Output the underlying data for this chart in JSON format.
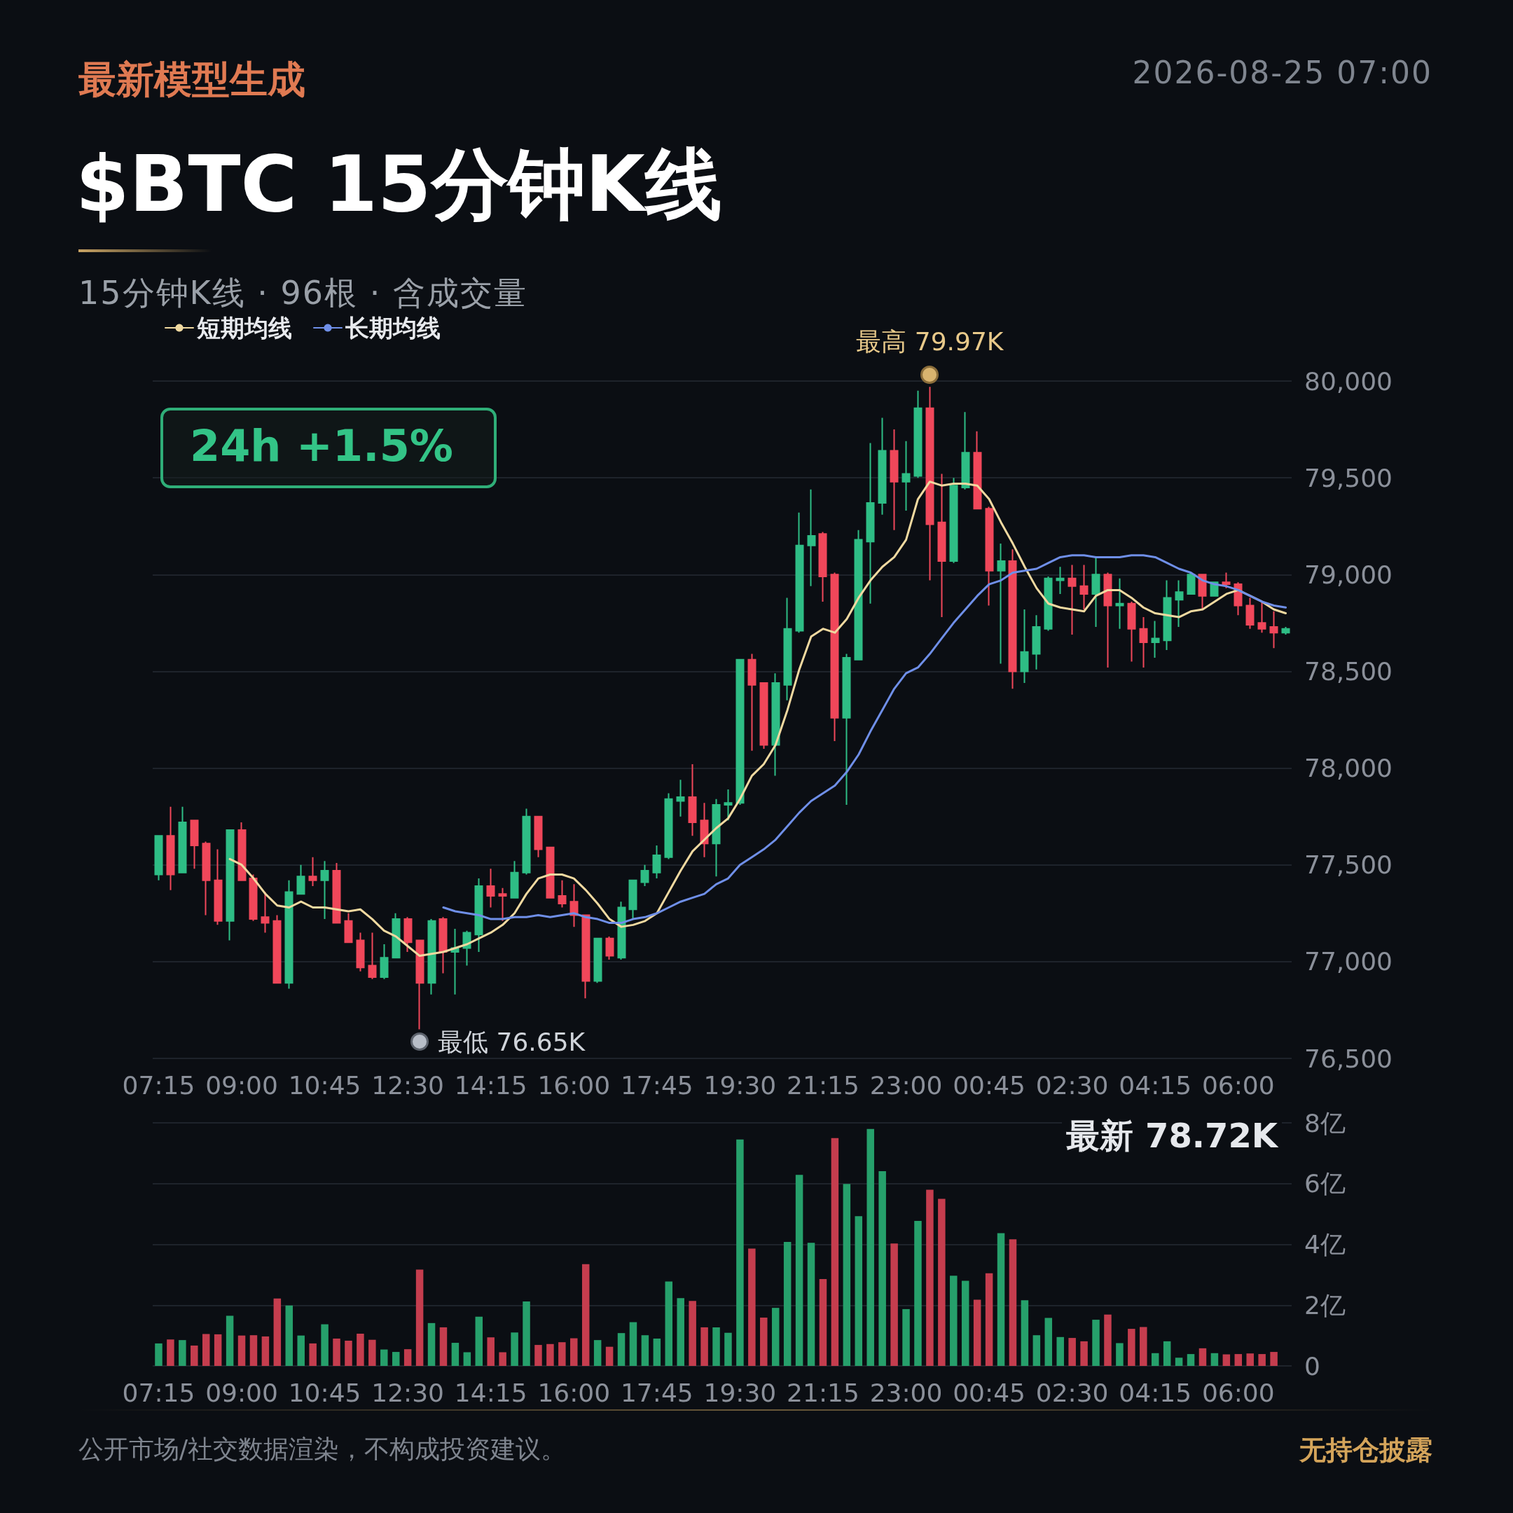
{
  "chart_data": [
    {
      "type": "candlestick",
      "title": "$BTC 15分钟K线",
      "subtitle": "15分钟K线 · 96根 · 含成交量",
      "annotations": [
        "最新模型生成",
        "2026-08-25 07:00",
        "24h +1.5%",
        "公开市场/社交数据渲染，不构成投资建议。",
        "无持仓披露",
        "最高 79.97K",
        "最低 76.65K",
        "最新 78.72K"
      ],
      "categories": [
        "07:15",
        null,
        null,
        null,
        null,
        null,
        null,
        "09:00",
        null,
        null,
        null,
        null,
        null,
        null,
        "10:45",
        null,
        null,
        null,
        null,
        null,
        null,
        "12:30",
        null,
        null,
        null,
        null,
        null,
        null,
        "14:15",
        null,
        null,
        null,
        null,
        null,
        null,
        "16:00",
        null,
        null,
        null,
        null,
        null,
        null,
        "17:45",
        null,
        null,
        null,
        null,
        null,
        null,
        "19:30",
        null,
        null,
        null,
        null,
        null,
        null,
        "21:15",
        null,
        null,
        null,
        null,
        null,
        null,
        "23:00",
        null,
        null,
        null,
        null,
        null,
        null,
        "00:45",
        null,
        null,
        null,
        null,
        null,
        null,
        "02:30",
        null,
        null,
        null,
        null,
        null,
        null,
        "04:15",
        null,
        null,
        null,
        null,
        null,
        null,
        "06:00",
        null,
        null,
        null,
        null
      ],
      "ohlc": [
        [
          77450,
          77650,
          77420,
          77650
        ],
        [
          77650,
          77800,
          77370,
          77450
        ],
        [
          77460,
          77800,
          77460,
          77720
        ],
        [
          77730,
          77730,
          77480,
          77600
        ],
        [
          77610,
          77620,
          77240,
          77420
        ],
        [
          77420,
          77580,
          77190,
          77210
        ],
        [
          77210,
          77680,
          77110,
          77680
        ],
        [
          77680,
          77720,
          77420,
          77420
        ],
        [
          77430,
          77450,
          77210,
          77220
        ],
        [
          77230,
          77360,
          77150,
          77200
        ],
        [
          77210,
          77240,
          76890,
          76890
        ],
        [
          76890,
          77420,
          76860,
          77360
        ],
        [
          77350,
          77500,
          77350,
          77440
        ],
        [
          77440,
          77540,
          77390,
          77420
        ],
        [
          77420,
          77520,
          77220,
          77470
        ],
        [
          77470,
          77510,
          77200,
          77200
        ],
        [
          77210,
          77250,
          77100,
          77100
        ],
        [
          77110,
          77150,
          76950,
          76970
        ],
        [
          76980,
          77150,
          76910,
          76920
        ],
        [
          76920,
          77090,
          76910,
          77020
        ],
        [
          77020,
          77250,
          77020,
          77220
        ],
        [
          77220,
          77230,
          77050,
          77100
        ],
        [
          77110,
          77110,
          76650,
          76890
        ],
        [
          76890,
          77220,
          76830,
          77210
        ],
        [
          77220,
          77230,
          76940,
          77050
        ],
        [
          77050,
          77170,
          76830,
          77070
        ],
        [
          77070,
          77160,
          76980,
          77150
        ],
        [
          77140,
          77430,
          77050,
          77390
        ],
        [
          77390,
          77480,
          77280,
          77340
        ],
        [
          77350,
          77380,
          77210,
          77340
        ],
        [
          77330,
          77520,
          77330,
          77460
        ],
        [
          77460,
          77790,
          77450,
          77750
        ],
        [
          77750,
          77750,
          77540,
          77580
        ],
        [
          77590,
          77590,
          77330,
          77330
        ],
        [
          77340,
          77420,
          77280,
          77300
        ],
        [
          77310,
          77400,
          77180,
          77240
        ],
        [
          77240,
          77240,
          76810,
          76900
        ],
        [
          76900,
          77120,
          76890,
          77120
        ],
        [
          77120,
          77130,
          77010,
          77030
        ],
        [
          77020,
          77310,
          77010,
          77280
        ],
        [
          77270,
          77420,
          77220,
          77420
        ],
        [
          77410,
          77500,
          77390,
          77470
        ],
        [
          77460,
          77600,
          77430,
          77550
        ],
        [
          77540,
          77870,
          77530,
          77840
        ],
        [
          77830,
          77940,
          77750,
          77850
        ],
        [
          77850,
          78020,
          77650,
          77720
        ],
        [
          77730,
          77820,
          77540,
          77610
        ],
        [
          77610,
          77840,
          77440,
          77810
        ],
        [
          77810,
          77890,
          77730,
          77820
        ],
        [
          77820,
          78560,
          77810,
          78560
        ],
        [
          78560,
          78590,
          78090,
          78430
        ],
        [
          78440,
          78440,
          78100,
          78120
        ],
        [
          78120,
          78490,
          77960,
          78440
        ],
        [
          78430,
          78880,
          78350,
          78720
        ],
        [
          78710,
          79320,
          78700,
          79150
        ],
        [
          79150,
          79440,
          78940,
          79200
        ],
        [
          79210,
          79220,
          78860,
          78990
        ],
        [
          79000,
          79010,
          78140,
          78260
        ],
        [
          78260,
          78590,
          77810,
          78570
        ],
        [
          78560,
          79230,
          78560,
          79180
        ],
        [
          79170,
          79680,
          78850,
          79370
        ],
        [
          79370,
          79810,
          79310,
          79640
        ],
        [
          79640,
          79750,
          79230,
          79480
        ],
        [
          79480,
          79690,
          79330,
          79520
        ],
        [
          79510,
          79950,
          79500,
          79860
        ],
        [
          79860,
          79970,
          78970,
          79260
        ],
        [
          79270,
          79520,
          78780,
          79070
        ],
        [
          79070,
          79500,
          79060,
          79460
        ],
        [
          79450,
          79840,
          79440,
          79630
        ],
        [
          79630,
          79740,
          79340,
          79340
        ],
        [
          79340,
          79350,
          78840,
          79020
        ],
        [
          79020,
          79160,
          78540,
          79070
        ],
        [
          79070,
          79130,
          78410,
          78500
        ],
        [
          78500,
          78820,
          78440,
          78600
        ],
        [
          78590,
          78790,
          78510,
          78730
        ],
        [
          78720,
          78990,
          78710,
          78980
        ],
        [
          78970,
          79040,
          78900,
          78980
        ],
        [
          78980,
          79050,
          78690,
          78940
        ],
        [
          78940,
          79050,
          78820,
          78900
        ],
        [
          78900,
          79090,
          78730,
          79000
        ],
        [
          79000,
          79010,
          78520,
          78840
        ],
        [
          78840,
          78980,
          78720,
          78850
        ],
        [
          78850,
          78860,
          78550,
          78720
        ],
        [
          78720,
          78780,
          78520,
          78650
        ],
        [
          78650,
          78760,
          78570,
          78670
        ],
        [
          78660,
          78970,
          78610,
          78880
        ],
        [
          78870,
          78970,
          78730,
          78910
        ],
        [
          78900,
          79010,
          78900,
          79000
        ],
        [
          79000,
          79000,
          78820,
          78890
        ],
        [
          78890,
          78960,
          78890,
          78960
        ],
        [
          78960,
          79010,
          78930,
          78950
        ],
        [
          78950,
          78960,
          78790,
          78840
        ],
        [
          78840,
          78880,
          78720,
          78740
        ],
        [
          78750,
          78860,
          78700,
          78720
        ],
        [
          78730,
          78810,
          78620,
          78700
        ],
        [
          78700,
          78730,
          78690,
          78720
        ]
      ],
      "colors": [
        "#2ebd85",
        "#f0475a",
        "#2ebd85",
        "#f0475a",
        "#f0475a",
        "#f0475a",
        "#2ebd85",
        "#f0475a",
        "#f0475a",
        "#f0475a",
        "#f0475a",
        "#2ebd85",
        "#2ebd85",
        "#f0475a",
        "#2ebd85",
        "#f0475a",
        "#f0475a",
        "#f0475a",
        "#f0475a",
        "#2ebd85",
        "#2ebd85",
        "#f0475a",
        "#f0475a",
        "#2ebd85",
        "#f0475a",
        "#2ebd85",
        "#2ebd85",
        "#2ebd85",
        "#f0475a",
        "#f0475a",
        "#2ebd85",
        "#2ebd85",
        "#f0475a",
        "#f0475a",
        "#f0475a",
        "#f0475a",
        "#f0475a",
        "#2ebd85",
        "#f0475a",
        "#2ebd85",
        "#2ebd85",
        "#2ebd85",
        "#2ebd85",
        "#2ebd85",
        "#2ebd85",
        "#f0475a",
        "#f0475a",
        "#2ebd85",
        "#2ebd85",
        "#2ebd85",
        "#f0475a",
        "#f0475a",
        "#2ebd85",
        "#2ebd85",
        "#2ebd85",
        "#2ebd85",
        "#f0475a",
        "#f0475a",
        "#2ebd85",
        "#2ebd85",
        "#2ebd85",
        "#2ebd85",
        "#f0475a",
        "#2ebd85",
        "#2ebd85",
        "#f0475a",
        "#f0475a",
        "#2ebd85",
        "#2ebd85",
        "#f0475a",
        "#f0475a",
        "#2ebd85",
        "#f0475a",
        "#2ebd85",
        "#2ebd85",
        "#2ebd85",
        "#2ebd85",
        "#f0475a",
        "#f0475a",
        "#2ebd85",
        "#f0475a",
        "#2ebd85",
        "#f0475a",
        "#f0475a",
        "#2ebd85",
        "#2ebd85",
        "#2ebd85",
        "#2ebd85",
        "#f0475a",
        "#2ebd85",
        "#f0475a",
        "#f0475a",
        "#f0475a",
        "#f0475a",
        "#f0475a",
        "#2ebd85"
      ],
      "series": [
        {
          "type": "line",
          "name": "短期均线",
          "color": "#f0d9a0",
          "values": [
            null,
            null,
            null,
            null,
            null,
            null,
            77530,
            77500,
            77430,
            77350,
            77290,
            77280,
            77310,
            77280,
            77280,
            77270,
            77260,
            77270,
            77220,
            77160,
            77130,
            77080,
            77030,
            77040,
            77050,
            77070,
            77090,
            77120,
            77150,
            77190,
            77250,
            77350,
            77430,
            77450,
            77450,
            77430,
            77370,
            77300,
            77220,
            77180,
            77190,
            77210,
            77250,
            77360,
            77470,
            77570,
            77630,
            77690,
            77740,
            77840,
            77960,
            78020,
            78120,
            78300,
            78510,
            78680,
            78720,
            78700,
            78770,
            78880,
            78970,
            79040,
            79090,
            79180,
            79390,
            79480,
            79460,
            79470,
            79470,
            79460,
            79390,
            79270,
            79160,
            79040,
            78930,
            78850,
            78830,
            78820,
            78810,
            78890,
            78920,
            78920,
            78880,
            78830,
            78800,
            78790,
            78780,
            78810,
            78820,
            78860,
            78900,
            78920,
            78890,
            78860,
            78820,
            78800
          ]
        },
        {
          "type": "line",
          "name": "长期均线",
          "color": "#6f8fe8",
          "values": [
            null,
            null,
            null,
            null,
            null,
            null,
            null,
            null,
            null,
            null,
            null,
            null,
            null,
            null,
            null,
            null,
            null,
            null,
            null,
            null,
            null,
            null,
            null,
            null,
            77280,
            77260,
            77250,
            77240,
            77220,
            77220,
            77230,
            77230,
            77240,
            77230,
            77240,
            77250,
            77230,
            77220,
            77200,
            77200,
            77220,
            77230,
            77250,
            77280,
            77310,
            77330,
            77350,
            77400,
            77430,
            77500,
            77540,
            77580,
            77630,
            77700,
            77770,
            77830,
            77870,
            77910,
            77980,
            78070,
            78190,
            78300,
            78410,
            78490,
            78520,
            78590,
            78670,
            78750,
            78820,
            78890,
            78950,
            78970,
            79010,
            79020,
            79030,
            79060,
            79090,
            79100,
            79100,
            79090,
            79090,
            79090,
            79100,
            79100,
            79090,
            79060,
            79030,
            79010,
            78970,
            78950,
            78940,
            78920,
            78890,
            78860,
            78840,
            78830
          ]
        }
      ],
      "ylim": [
        76500,
        80000
      ],
      "yticks": [
        {
          "value": 76500,
          "label": "76,500"
        },
        {
          "value": 77000,
          "label": "77,000"
        },
        {
          "value": 77500,
          "label": "77,500"
        },
        {
          "value": 78000,
          "label": "78,000"
        },
        {
          "value": 78500,
          "label": "78,500"
        },
        {
          "value": 79000,
          "label": "79,000"
        },
        {
          "value": 79500,
          "label": "79,500"
        },
        {
          "value": 80000,
          "label": "80,000"
        }
      ],
      "grid": "y",
      "legend": "top left",
      "marker": "none",
      "line_style": "solid"
    },
    {
      "type": "bar",
      "categories": [
        "07:15",
        null,
        null,
        null,
        null,
        null,
        null,
        "09:00",
        null,
        null,
        null,
        null,
        null,
        null,
        "10:45",
        null,
        null,
        null,
        null,
        null,
        null,
        "12:30",
        null,
        null,
        null,
        null,
        null,
        null,
        "14:15",
        null,
        null,
        null,
        null,
        null,
        null,
        "16:00",
        null,
        null,
        null,
        null,
        null,
        null,
        "17:45",
        null,
        null,
        null,
        null,
        null,
        null,
        "19:30",
        null,
        null,
        null,
        null,
        null,
        null,
        "21:15",
        null,
        null,
        null,
        null,
        null,
        null,
        "23:00",
        null,
        null,
        null,
        null,
        null,
        null,
        "00:45",
        null,
        null,
        null,
        null,
        null,
        null,
        "02:30",
        null,
        null,
        null,
        null,
        null,
        null,
        "04:15",
        null,
        null,
        null,
        null,
        null,
        null,
        "06:00",
        null,
        null,
        null,
        null
      ],
      "values": [
        0.74,
        0.87,
        0.85,
        0.67,
        1.05,
        1.04,
        1.65,
        1.0,
        1.01,
        0.97,
        2.22,
        1.99,
        1.0,
        0.74,
        1.37,
        0.9,
        0.83,
        1.06,
        0.86,
        0.54,
        0.46,
        0.55,
        3.17,
        1.41,
        1.27,
        0.76,
        0.45,
        1.62,
        0.94,
        0.45,
        1.1,
        2.12,
        0.69,
        0.72,
        0.78,
        0.91,
        3.35,
        0.85,
        0.63,
        1.08,
        1.44,
        1.01,
        0.9,
        2.78,
        2.23,
        2.14,
        1.27,
        1.27,
        1.09,
        7.45,
        3.86,
        1.59,
        1.91,
        4.08,
        6.29,
        4.05,
        2.86,
        7.5,
        5.99,
        4.93,
        7.8,
        6.41,
        4.03,
        1.87,
        4.77,
        5.8,
        5.5,
        2.97,
        2.8,
        2.18,
        3.05,
        4.37,
        4.17,
        2.16,
        1.01,
        1.58,
        0.95,
        0.92,
        0.81,
        1.52,
        1.69,
        0.75,
        1.22,
        1.28,
        0.42,
        0.81,
        0.27,
        0.39,
        0.58,
        0.42,
        0.38,
        0.39,
        0.41,
        0.39,
        0.46,
        null
      ],
      "colors": [
        "#26a06b",
        "#c53d4e",
        "#26a06b",
        "#c53d4e",
        "#c53d4e",
        "#c53d4e",
        "#26a06b",
        "#c53d4e",
        "#c53d4e",
        "#c53d4e",
        "#c53d4e",
        "#26a06b",
        "#26a06b",
        "#c53d4e",
        "#26a06b",
        "#c53d4e",
        "#c53d4e",
        "#c53d4e",
        "#c53d4e",
        "#26a06b",
        "#26a06b",
        "#c53d4e",
        "#c53d4e",
        "#26a06b",
        "#c53d4e",
        "#26a06b",
        "#26a06b",
        "#26a06b",
        "#c53d4e",
        "#c53d4e",
        "#26a06b",
        "#26a06b",
        "#c53d4e",
        "#c53d4e",
        "#c53d4e",
        "#c53d4e",
        "#c53d4e",
        "#26a06b",
        "#c53d4e",
        "#26a06b",
        "#26a06b",
        "#26a06b",
        "#26a06b",
        "#26a06b",
        "#26a06b",
        "#c53d4e",
        "#c53d4e",
        "#26a06b",
        "#26a06b",
        "#26a06b",
        "#c53d4e",
        "#c53d4e",
        "#26a06b",
        "#26a06b",
        "#26a06b",
        "#26a06b",
        "#c53d4e",
        "#c53d4e",
        "#26a06b",
        "#26a06b",
        "#26a06b",
        "#26a06b",
        "#c53d4e",
        "#26a06b",
        "#26a06b",
        "#c53d4e",
        "#c53d4e",
        "#26a06b",
        "#26a06b",
        "#c53d4e",
        "#c53d4e",
        "#26a06b",
        "#c53d4e",
        "#26a06b",
        "#26a06b",
        "#26a06b",
        "#26a06b",
        "#c53d4e",
        "#c53d4e",
        "#26a06b",
        "#c53d4e",
        "#26a06b",
        "#c53d4e",
        "#c53d4e",
        "#26a06b",
        "#26a06b",
        "#26a06b",
        "#26a06b",
        "#c53d4e",
        "#26a06b",
        "#c53d4e",
        "#c53d4e",
        "#c53d4e",
        "#c53d4e",
        "#c53d4e",
        "#26a06b"
      ],
      "ylim": [
        0,
        8
      ],
      "yticks": [
        0,
        {
          "value": 2,
          "label": "2亿"
        },
        {
          "value": 4,
          "label": "4亿"
        },
        {
          "value": 6,
          "label": "6亿"
        },
        {
          "value": 8,
          "label": "8亿"
        }
      ],
      "grid": "y"
    }
  ]
}
